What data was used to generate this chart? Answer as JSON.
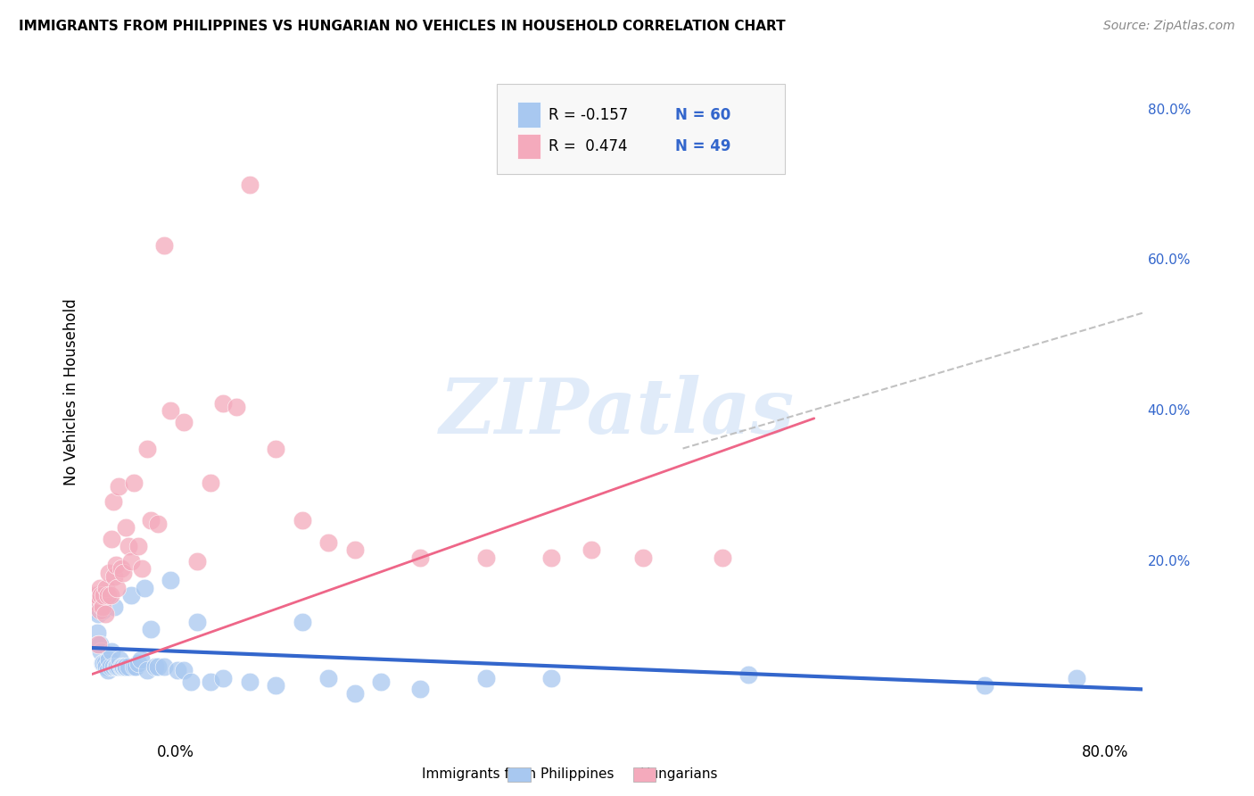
{
  "title": "IMMIGRANTS FROM PHILIPPINES VS HUNGARIAN NO VEHICLES IN HOUSEHOLD CORRELATION CHART",
  "source": "Source: ZipAtlas.com",
  "ylabel": "No Vehicles in Household",
  "xlim": [
    0.0,
    0.8
  ],
  "ylim": [
    -0.02,
    0.87
  ],
  "color_blue": "#A8C8F0",
  "color_pink": "#F4AABC",
  "color_blue_line": "#3366CC",
  "color_pink_line": "#EE6688",
  "color_dashed": "#BBBBBB",
  "color_blue_text": "#3366CC",
  "color_grid": "#DDDDDD",
  "background_color": "#FFFFFF",
  "watermark": "ZIPatlas",
  "legend_text1": "R = -0.157",
  "legend_n1": "N = 60",
  "legend_text2": "R =  0.474",
  "legend_n2": "N = 49",
  "right_ytick_vals": [
    0.2,
    0.4,
    0.6,
    0.8
  ],
  "right_ytick_labels": [
    "20.0%",
    "40.0%",
    "60.0%",
    "80.0%"
  ],
  "blue_x": [
    0.002,
    0.003,
    0.004,
    0.004,
    0.005,
    0.005,
    0.006,
    0.006,
    0.007,
    0.008,
    0.008,
    0.009,
    0.01,
    0.011,
    0.012,
    0.013,
    0.014,
    0.015,
    0.016,
    0.017,
    0.018,
    0.019,
    0.02,
    0.021,
    0.022,
    0.023,
    0.024,
    0.025,
    0.026,
    0.028,
    0.03,
    0.032,
    0.033,
    0.035,
    0.037,
    0.04,
    0.042,
    0.045,
    0.048,
    0.05,
    0.055,
    0.06,
    0.065,
    0.07,
    0.075,
    0.08,
    0.09,
    0.1,
    0.12,
    0.14,
    0.16,
    0.18,
    0.2,
    0.22,
    0.25,
    0.3,
    0.35,
    0.5,
    0.68,
    0.75
  ],
  "blue_y": [
    0.155,
    0.155,
    0.135,
    0.105,
    0.13,
    0.09,
    0.145,
    0.09,
    0.08,
    0.135,
    0.065,
    0.065,
    0.065,
    0.06,
    0.055,
    0.07,
    0.06,
    0.08,
    0.06,
    0.14,
    0.06,
    0.06,
    0.06,
    0.07,
    0.06,
    0.06,
    0.06,
    0.06,
    0.06,
    0.06,
    0.155,
    0.06,
    0.06,
    0.065,
    0.07,
    0.165,
    0.055,
    0.11,
    0.06,
    0.06,
    0.06,
    0.175,
    0.055,
    0.055,
    0.04,
    0.12,
    0.04,
    0.045,
    0.04,
    0.035,
    0.12,
    0.045,
    0.025,
    0.04,
    0.03,
    0.045,
    0.045,
    0.05,
    0.035,
    0.045
  ],
  "pink_x": [
    0.002,
    0.003,
    0.004,
    0.005,
    0.006,
    0.006,
    0.007,
    0.008,
    0.009,
    0.01,
    0.011,
    0.012,
    0.013,
    0.014,
    0.015,
    0.016,
    0.017,
    0.018,
    0.019,
    0.02,
    0.022,
    0.024,
    0.026,
    0.028,
    0.03,
    0.032,
    0.035,
    0.038,
    0.042,
    0.045,
    0.05,
    0.055,
    0.06,
    0.07,
    0.08,
    0.09,
    0.1,
    0.11,
    0.12,
    0.14,
    0.16,
    0.18,
    0.2,
    0.25,
    0.3,
    0.35,
    0.38,
    0.42,
    0.48
  ],
  "pink_y": [
    0.155,
    0.145,
    0.155,
    0.09,
    0.165,
    0.135,
    0.155,
    0.14,
    0.155,
    0.13,
    0.165,
    0.155,
    0.185,
    0.155,
    0.23,
    0.28,
    0.18,
    0.195,
    0.165,
    0.3,
    0.19,
    0.185,
    0.245,
    0.22,
    0.2,
    0.305,
    0.22,
    0.19,
    0.35,
    0.255,
    0.25,
    0.62,
    0.4,
    0.385,
    0.2,
    0.305,
    0.41,
    0.405,
    0.7,
    0.35,
    0.255,
    0.225,
    0.215,
    0.205,
    0.205,
    0.205,
    0.215,
    0.205,
    0.205
  ],
  "blue_line_x": [
    0.0,
    0.8
  ],
  "blue_line_y_start": 0.085,
  "blue_line_y_end": 0.03,
  "pink_line_x": [
    0.0,
    0.55
  ],
  "pink_line_y_start": 0.05,
  "pink_line_y_end": 0.39,
  "dashed_line_x": [
    0.45,
    0.8
  ],
  "dashed_line_y": [
    0.35,
    0.53
  ]
}
